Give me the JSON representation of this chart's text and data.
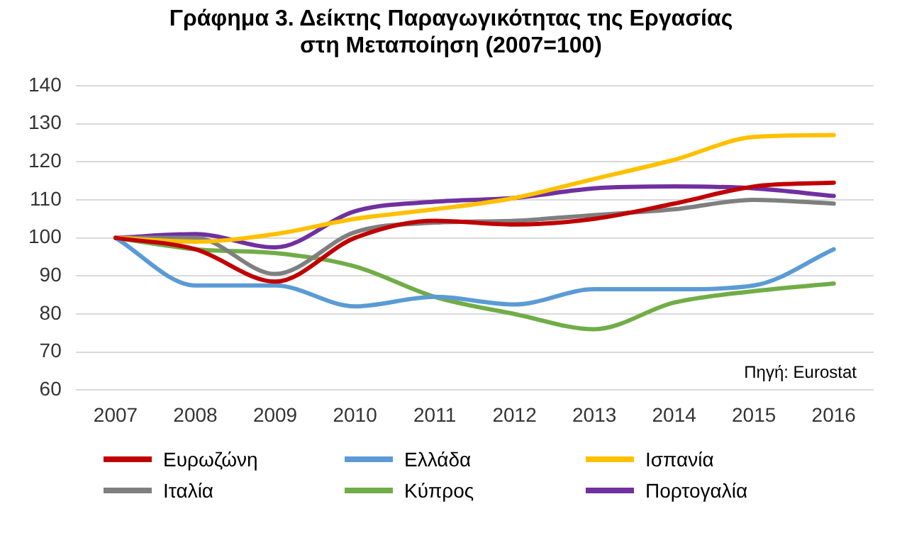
{
  "chart_data": {
    "type": "line",
    "title": "Γράφημα 3. Δείκτης Παραγωγικότητας της Εργασίας στη Μεταποίηση (2007=100)",
    "categories": [
      "2007",
      "2008",
      "2009",
      "2010",
      "2011",
      "2012",
      "2013",
      "2014",
      "2015",
      "2016"
    ],
    "series": [
      {
        "name": "Ευρωζώνη",
        "color": "#c00000",
        "values": [
          100,
          97,
          88.5,
          100,
          104.5,
          103.5,
          105,
          109,
          113.5,
          114.5
        ]
      },
      {
        "name": "Ελλάδα",
        "color": "#5b9bd5",
        "values": [
          100,
          87.5,
          87.5,
          82,
          84.5,
          82.5,
          86.5,
          86.5,
          87.5,
          97
        ]
      },
      {
        "name": "Ισπανία",
        "color": "#ffc000",
        "values": [
          100,
          99,
          101,
          105,
          107.5,
          110.5,
          115.5,
          120.5,
          126.5,
          127
        ]
      },
      {
        "name": "Ιταλία",
        "color": "#7f7f7f",
        "values": [
          100,
          100,
          90.5,
          101.5,
          104,
          104.5,
          106,
          107.5,
          110,
          109
        ]
      },
      {
        "name": "Κύπρος",
        "color": "#70ad47",
        "values": [
          100,
          97,
          96,
          92.5,
          84.5,
          80,
          76,
          83,
          86,
          88
        ]
      },
      {
        "name": "Πορτογαλία",
        "color": "#7030a0",
        "values": [
          100,
          101,
          97.5,
          107,
          109.5,
          110.5,
          113,
          113.5,
          113,
          111
        ]
      }
    ],
    "ylim": [
      60,
      140
    ],
    "yticks": [
      60,
      70,
      80,
      90,
      100,
      110,
      120,
      130,
      140
    ],
    "grid": "y",
    "legend": "bottom",
    "marker": "none",
    "line_style": "solid",
    "annotations": [
      "Πηγή: Eurostat"
    ]
  }
}
